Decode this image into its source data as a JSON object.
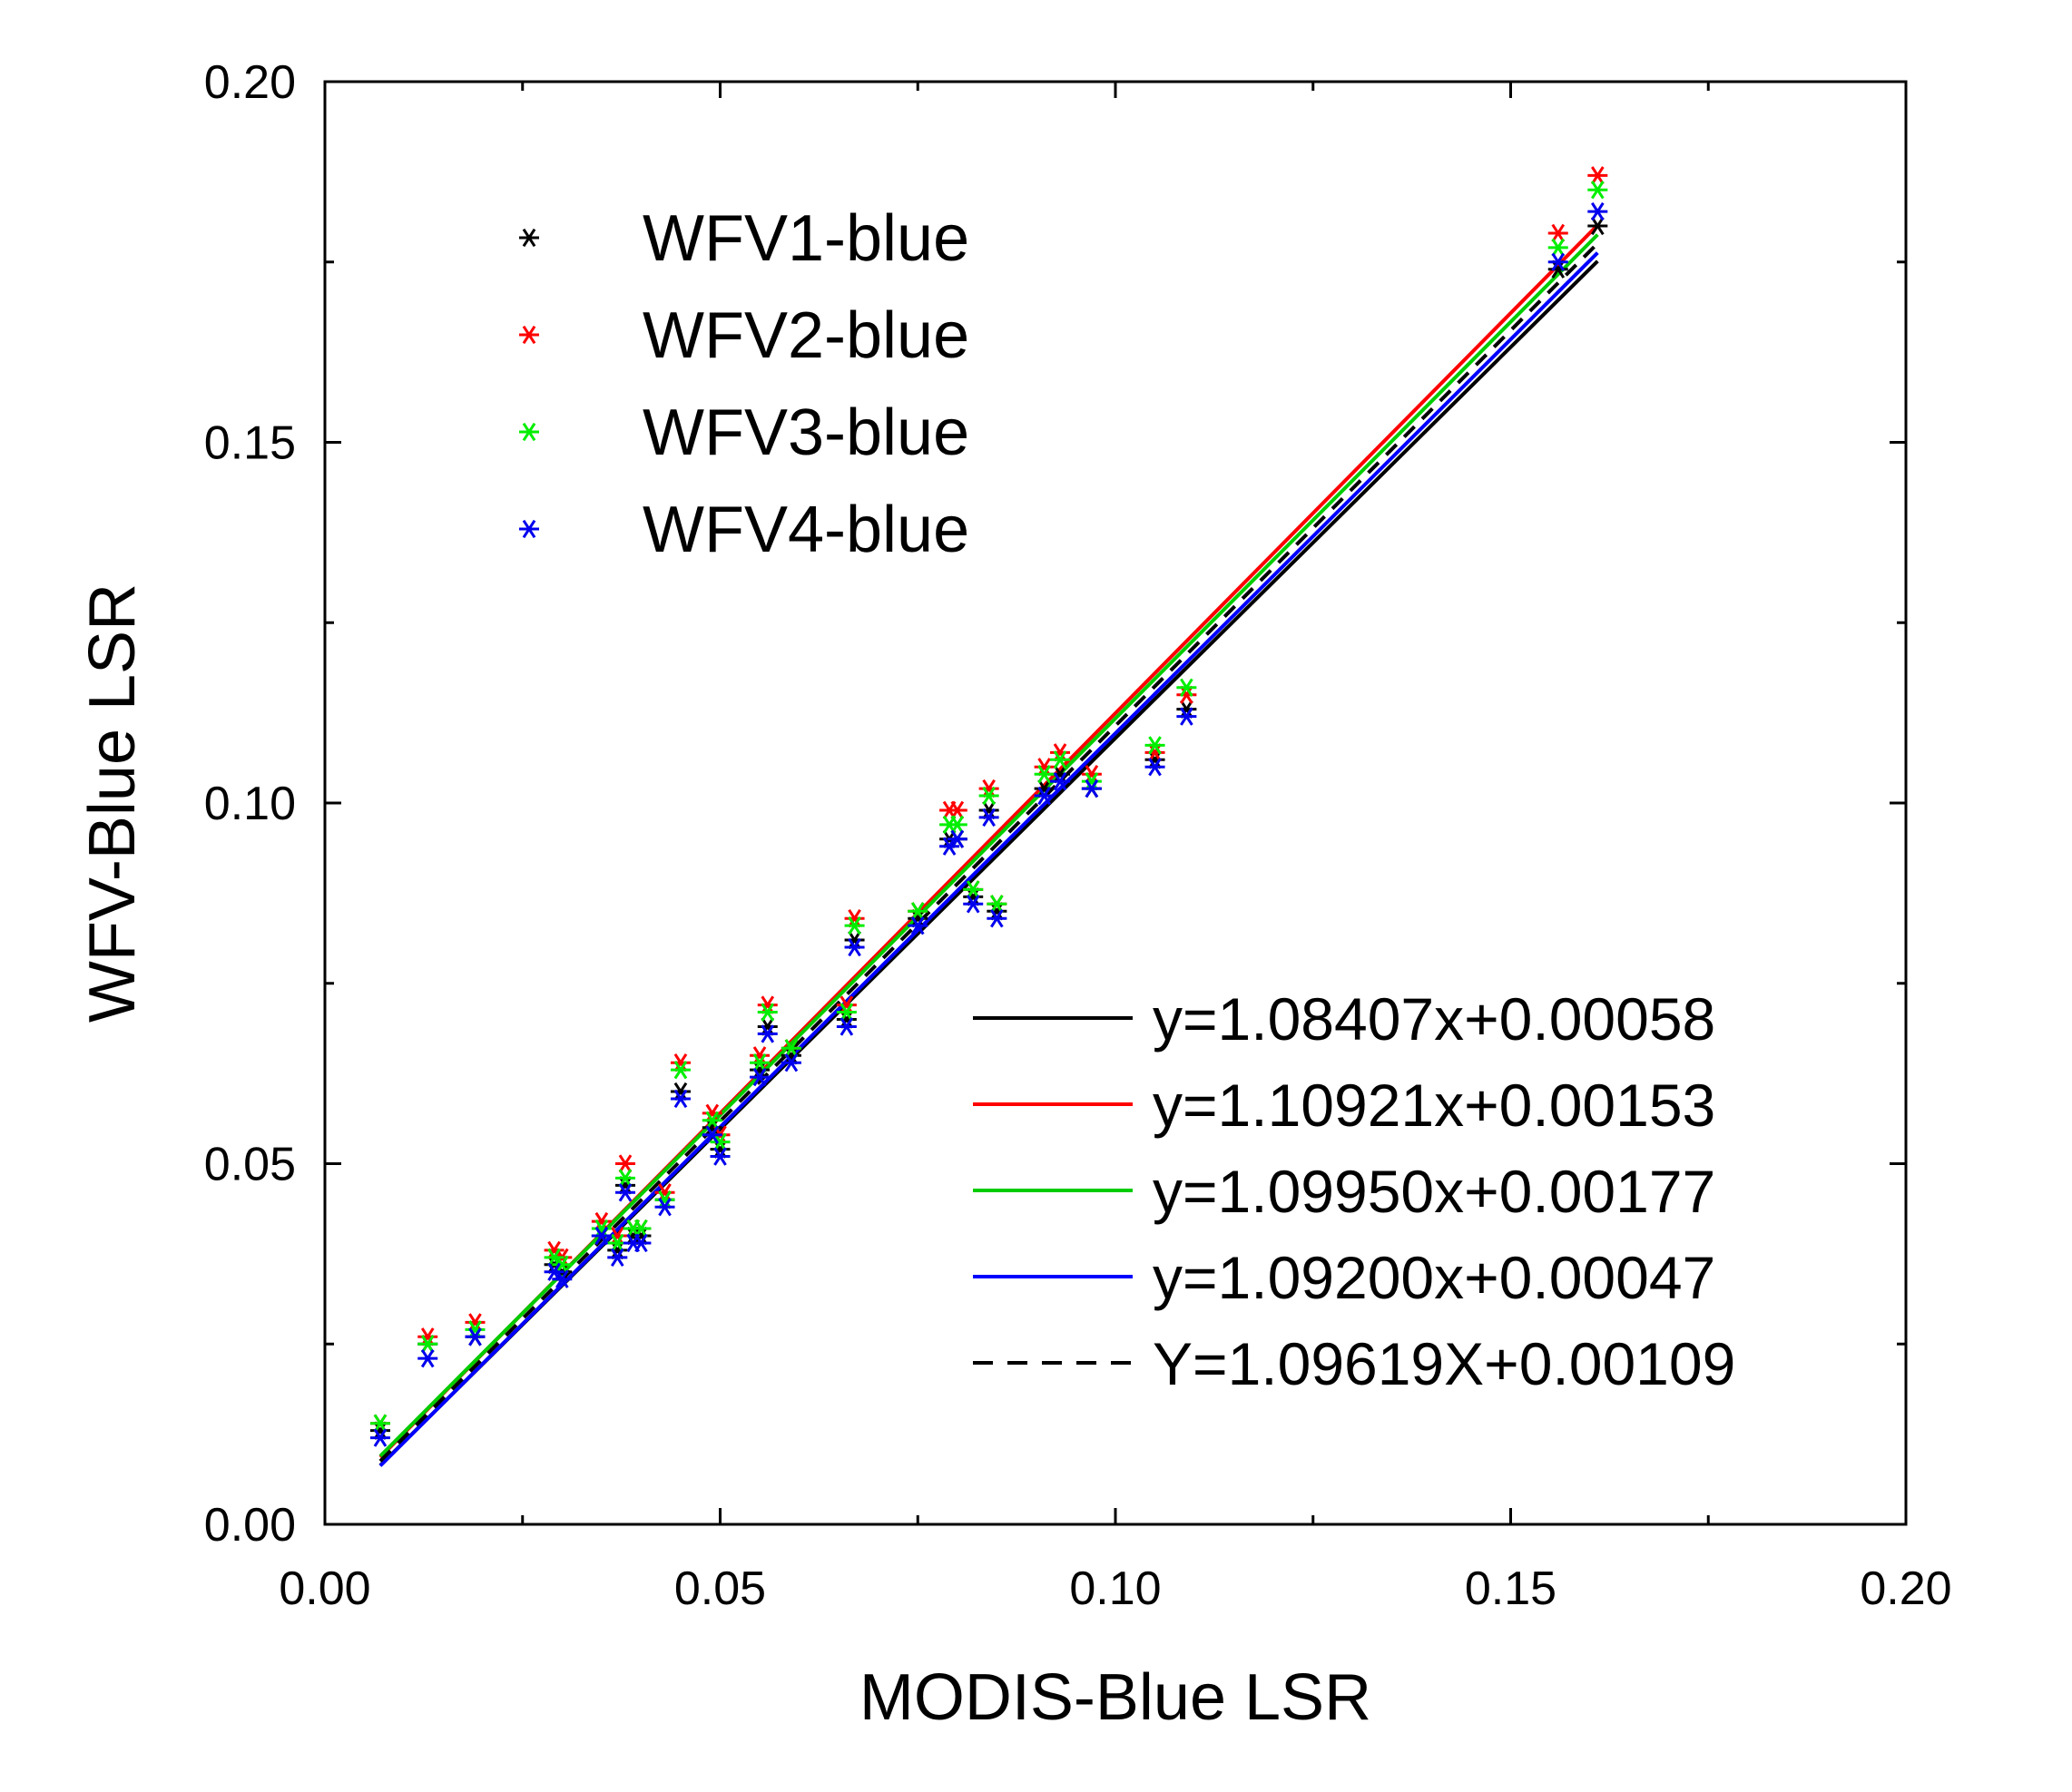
{
  "chart_data": {
    "type": "scatter",
    "xlabel": "MODIS-Blue LSR",
    "ylabel": "WFV-Blue LSR",
    "xlim": [
      0.0,
      0.2
    ],
    "ylim": [
      0.0,
      0.2
    ],
    "x_ticks": [
      "0.00",
      "0.05",
      "0.10",
      "0.15",
      "0.20"
    ],
    "y_ticks": [
      "0.00",
      "0.05",
      "0.10",
      "0.15",
      "0.20"
    ],
    "grid": false,
    "marker": "*",
    "x": [
      0.007,
      0.013,
      0.019,
      0.029,
      0.03,
      0.035,
      0.037,
      0.038,
      0.039,
      0.04,
      0.043,
      0.045,
      0.049,
      0.05,
      0.055,
      0.056,
      0.059,
      0.066,
      0.067,
      0.075,
      0.079,
      0.08,
      0.082,
      0.084,
      0.085,
      0.091,
      0.093,
      0.097,
      0.105,
      0.109,
      0.156,
      0.161
    ],
    "series": [
      {
        "name": "WFV1-blue",
        "color": "#000000",
        "values": [
          0.013,
          0.025,
          0.026,
          0.036,
          0.035,
          0.04,
          0.038,
          0.047,
          0.04,
          0.04,
          0.045,
          0.06,
          0.055,
          0.052,
          0.063,
          0.069,
          0.065,
          0.07,
          0.081,
          0.084,
          0.095,
          0.095,
          0.087,
          0.099,
          0.085,
          0.102,
          0.104,
          0.102,
          0.106,
          0.113,
          0.174,
          0.18
        ]
      },
      {
        "name": "WFV2-blue",
        "color": "#ff0000",
        "values": [
          0.014,
          0.026,
          0.028,
          0.038,
          0.037,
          0.042,
          0.04,
          0.05,
          0.041,
          0.041,
          0.046,
          0.064,
          0.057,
          0.054,
          0.065,
          0.072,
          0.066,
          0.072,
          0.084,
          0.085,
          0.099,
          0.099,
          0.088,
          0.102,
          0.086,
          0.105,
          0.107,
          0.104,
          0.107,
          0.115,
          0.179,
          0.187
        ]
      },
      {
        "name": "WFV3-blue",
        "color": "#00ee00",
        "values": [
          0.014,
          0.025,
          0.027,
          0.037,
          0.036,
          0.041,
          0.039,
          0.048,
          0.041,
          0.041,
          0.045,
          0.063,
          0.056,
          0.053,
          0.064,
          0.071,
          0.066,
          0.071,
          0.083,
          0.085,
          0.097,
          0.097,
          0.088,
          0.101,
          0.086,
          0.104,
          0.106,
          0.103,
          0.108,
          0.116,
          0.177,
          0.185
        ]
      },
      {
        "name": "WFV4-blue",
        "color": "#0000ee",
        "values": [
          0.012,
          0.023,
          0.026,
          0.035,
          0.034,
          0.04,
          0.037,
          0.046,
          0.039,
          0.039,
          0.044,
          0.059,
          0.054,
          0.051,
          0.062,
          0.068,
          0.064,
          0.069,
          0.08,
          0.083,
          0.094,
          0.095,
          0.086,
          0.098,
          0.084,
          0.101,
          0.103,
          0.102,
          0.105,
          0.112,
          0.175,
          0.182
        ]
      }
    ],
    "fit_lines": [
      {
        "label": "y=1.08407x+0.00058",
        "slope": 1.08407,
        "intercept": 0.00058,
        "color": "#000000",
        "dash": false,
        "x_range": [
          0.007,
          0.161
        ]
      },
      {
        "label": "y=1.10921x+0.00153",
        "slope": 1.10921,
        "intercept": 0.00153,
        "color": "#ff0000",
        "dash": false,
        "x_range": [
          0.007,
          0.161
        ]
      },
      {
        "label": "y=1.09950x+0.00177",
        "slope": 1.0995,
        "intercept": 0.00177,
        "color": "#00cc00",
        "dash": false,
        "x_range": [
          0.007,
          0.161
        ]
      },
      {
        "label": "y=1.09200x+0.00047",
        "slope": 1.092,
        "intercept": 0.00047,
        "color": "#0000ff",
        "dash": false,
        "x_range": [
          0.007,
          0.161
        ]
      },
      {
        "label": "Y=1.09619X+0.00109",
        "slope": 1.09619,
        "intercept": 0.00109,
        "color": "#000000",
        "dash": true,
        "x_range": [
          0.007,
          0.161
        ]
      }
    ],
    "legend_placement": "top-left"
  }
}
